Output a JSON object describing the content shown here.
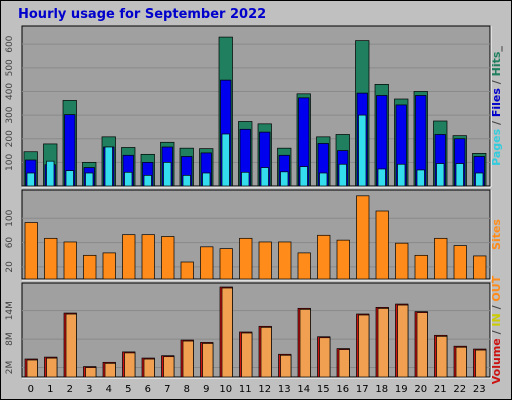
{
  "title": "Hourly usage for September 2022",
  "colors": {
    "background": "#c0c0c0",
    "panel": "#a0a0a0",
    "hits": "#1f7f5f",
    "files": "#0000ee",
    "pages": "#33ddee",
    "sites": "#ff8c1a",
    "volume_in": "#cc1111",
    "volume_out": "#f0a050"
  },
  "chart_data": [
    {
      "type": "bar",
      "categories": [
        "0",
        "1",
        "2",
        "3",
        "4",
        "5",
        "6",
        "7",
        "8",
        "9",
        "10",
        "11",
        "12",
        "13",
        "14",
        "15",
        "16",
        "17",
        "18",
        "19",
        "20",
        "21",
        "22",
        "23"
      ],
      "ylim": [
        0,
        660
      ],
      "yticks": [
        "100",
        "200",
        "300",
        "400",
        "500",
        "600"
      ],
      "ytick_values": [
        100,
        200,
        300,
        400,
        500,
        600
      ],
      "side_label_parts": [
        {
          "text": "Pages",
          "color": "#33ccdd"
        },
        {
          "text": " / ",
          "color": "#444444"
        },
        {
          "text": "Files",
          "color": "#0000cc"
        },
        {
          "text": " / ",
          "color": "#444444"
        },
        {
          "text": "Hits",
          "color": "#1f7f5f"
        },
        {
          "text": "_",
          "color": "#444444"
        }
      ],
      "series": [
        {
          "name": "Hits",
          "values": [
            145,
            178,
            362,
            100,
            208,
            163,
            134,
            185,
            160,
            158,
            630,
            273,
            263,
            160,
            390,
            208,
            218,
            615,
            430,
            368,
            400,
            275,
            213,
            138
          ]
        },
        {
          "name": "Files",
          "values": [
            110,
            90,
            302,
            78,
            165,
            130,
            100,
            165,
            125,
            140,
            448,
            240,
            228,
            130,
            373,
            180,
            150,
            393,
            383,
            343,
            383,
            218,
            200,
            125
          ]
        },
        {
          "name": "Pages",
          "values": [
            55,
            105,
            65,
            55,
            165,
            58,
            45,
            100,
            45,
            55,
            220,
            58,
            78,
            60,
            82,
            55,
            92,
            300,
            72,
            92,
            68,
            95,
            95,
            55
          ]
        }
      ]
    },
    {
      "type": "bar",
      "categories": [
        "0",
        "1",
        "2",
        "3",
        "4",
        "5",
        "6",
        "7",
        "8",
        "9",
        "10",
        "11",
        "12",
        "13",
        "14",
        "15",
        "16",
        "17",
        "18",
        "19",
        "20",
        "21",
        "22",
        "23"
      ],
      "ylim": [
        0,
        140
      ],
      "yticks": [
        "20",
        "60",
        "100"
      ],
      "ytick_values": [
        20,
        60,
        100
      ],
      "side_label_parts": [
        {
          "text": "Sites",
          "color": "#ff8c1a"
        }
      ],
      "series": [
        {
          "name": "Sites",
          "values": [
            93,
            67,
            61,
            39,
            43,
            73,
            73,
            70,
            28,
            53,
            50,
            67,
            61,
            61,
            43,
            72,
            64,
            137,
            112,
            59,
            39,
            67,
            55,
            38
          ]
        }
      ]
    },
    {
      "type": "bar",
      "categories": [
        "0",
        "1",
        "2",
        "3",
        "4",
        "5",
        "6",
        "7",
        "8",
        "9",
        "10",
        "11",
        "12",
        "13",
        "14",
        "15",
        "16",
        "17",
        "18",
        "19",
        "20",
        "21",
        "22",
        "23"
      ],
      "ylim": [
        0,
        19000000
      ],
      "yticks": [
        "2M",
        "8M",
        "14M"
      ],
      "ytick_values": [
        2000000,
        8000000,
        14000000
      ],
      "side_label_parts": [
        {
          "text": "Volume",
          "color": "#cc1111"
        },
        {
          "text": " / ",
          "color": "#444444"
        },
        {
          "text": "IN",
          "color": "#cccc00"
        },
        {
          "text": " / ",
          "color": "#444444"
        },
        {
          "text": "OUT",
          "color": "#ff8c1a"
        }
      ],
      "series": [
        {
          "name": "IN",
          "values": [
            3800000,
            4200000,
            13500000,
            2200000,
            3100000,
            5300000,
            4000000,
            4500000,
            7800000,
            7300000,
            19000000,
            9500000,
            10700000,
            4800000,
            14500000,
            8500000,
            6000000,
            13300000,
            14700000,
            15400000,
            13800000,
            8800000,
            6500000,
            5900000
          ]
        },
        {
          "name": "OUT",
          "values": [
            3800000,
            4200000,
            13500000,
            2200000,
            3100000,
            5300000,
            4000000,
            4500000,
            7800000,
            7300000,
            19000000,
            9500000,
            10700000,
            4800000,
            14500000,
            8500000,
            6000000,
            13300000,
            14700000,
            15400000,
            13800000,
            8800000,
            6500000,
            5900000
          ]
        }
      ]
    }
  ]
}
